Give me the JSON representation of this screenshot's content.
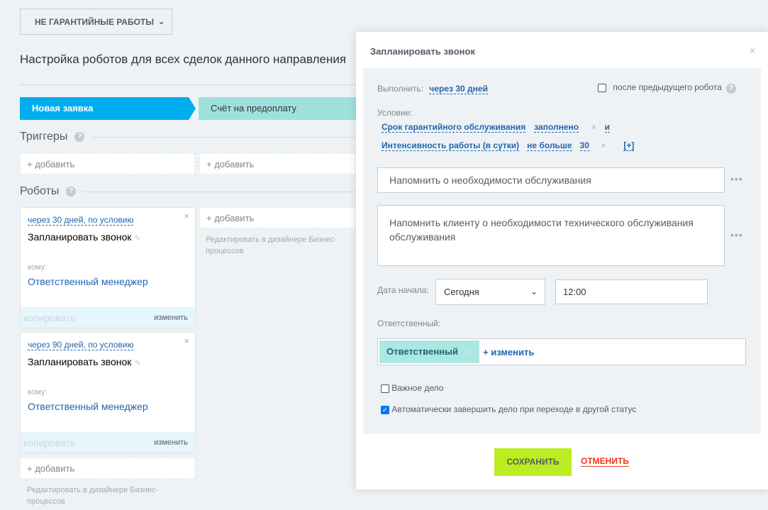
{
  "header": {
    "pipeline": "НЕ ГАРАНТИЙНЫЕ РАБОТЫ",
    "title": "Настройка роботов для всех сделок данного направления"
  },
  "stages": [
    {
      "label": "Новая заявка",
      "color": "#00aeef"
    },
    {
      "label": "Счёт на предоплату",
      "color": "#9ee1dc"
    }
  ],
  "triggers": {
    "heading": "Триггеры",
    "add": "+ добавить"
  },
  "robots": {
    "heading": "Роботы",
    "add": "+ добавить",
    "designer_note": "Редактировать в дизайнере Бизнес-процессов",
    "cards": [
      {
        "condition": "через 30 дней, по условию",
        "name": "Запланировать звонок",
        "to_label": "кому:",
        "to": "Ответственный менеджер",
        "copy": "копировать",
        "edit": "изменить"
      },
      {
        "condition": "через 90 дней, по условию",
        "name": "Запланировать звонок",
        "to_label": "кому:",
        "to": "Ответственный менеджер",
        "copy": "копировать",
        "edit": "изменить"
      }
    ]
  },
  "modal": {
    "title": "Запланировать звонок",
    "close": "×",
    "execute_label": "Выполнить:",
    "execute_value": "через 30 дней",
    "after_prev": "после предыдущего робота",
    "after_prev_checked": false,
    "condition_label": "Условие:",
    "conditions": [
      {
        "field": "Срок гарантийного обслуживания",
        "op": "заполнено",
        "value": "",
        "joiner": "и"
      },
      {
        "field": "Интенсивность работы (в сутки)",
        "op": "не больше",
        "value": "30",
        "joiner": "[+]"
      }
    ],
    "subject": "Напомнить о необходимости обслуживания",
    "description": "Напомнить клиенту о необходимости технического обслуживания обслуживания",
    "start_label": "Дата начала:",
    "start_value": "Сегодня",
    "time_value": "12:00",
    "responsible_label": "Ответственный:",
    "responsible_tag": "Ответственный",
    "responsible_change": "+ изменить",
    "important": "Важное дело",
    "important_checked": false,
    "auto_complete": "Автоматически завершить дело при переходе в другой статус",
    "auto_complete_checked": true,
    "save": "СОХРАНИТЬ",
    "cancel": "ОТМЕНИТЬ"
  }
}
